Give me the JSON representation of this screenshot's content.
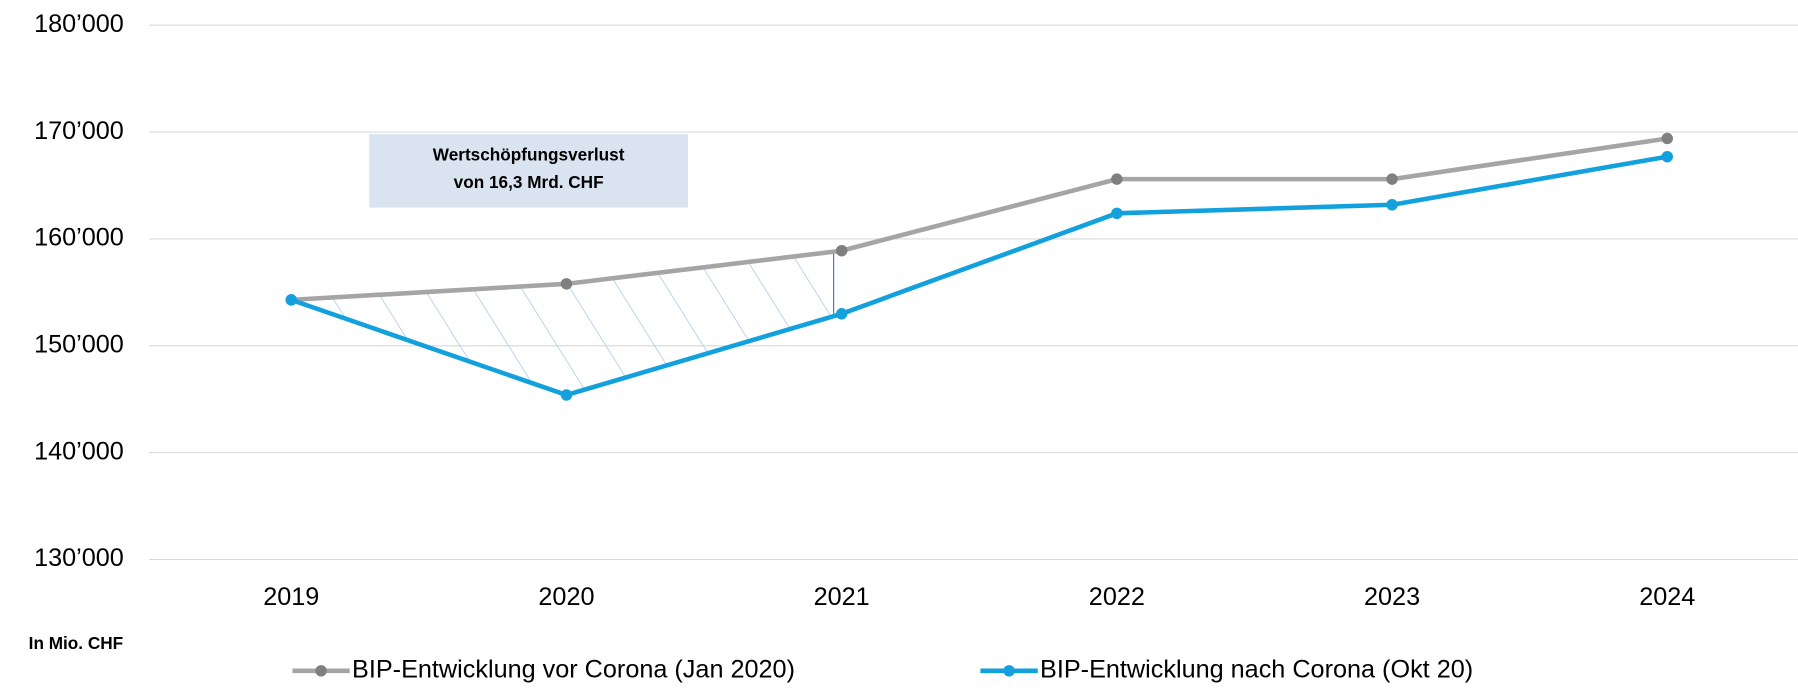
{
  "chart_data": {
    "type": "line",
    "categories": [
      "2019",
      "2020",
      "2021",
      "2022",
      "2023",
      "2024"
    ],
    "series": [
      {
        "name": "BIP-Entwicklung vor Corona (Jan 2020)",
        "color": "#a5a5a5",
        "marker_color": "#7f7f7f",
        "values": [
          154300,
          155800,
          158900,
          165600,
          165600,
          169400
        ]
      },
      {
        "name": "BIP-Entwicklung nach Corona (Okt 20)",
        "color": "#12a1dc",
        "marker_color": "#12a1dc",
        "values": [
          154300,
          145400,
          153000,
          162400,
          163200,
          167700
        ]
      }
    ],
    "ylim": [
      130000,
      180000
    ],
    "yticks": [
      {
        "value": 130000,
        "label": "130’000"
      },
      {
        "value": 140000,
        "label": "140’000"
      },
      {
        "value": 150000,
        "label": "150’000"
      },
      {
        "value": 160000,
        "label": "160’000"
      },
      {
        "value": 170000,
        "label": "170’000"
      },
      {
        "value": 180000,
        "label": "180’000"
      }
    ],
    "grid": true,
    "annotation": [
      "Wertschöpfungsverlust",
      "von 16,3 Mrd. CHF"
    ],
    "unit_label": "In Mio. CHF",
    "legend": "bottom"
  }
}
